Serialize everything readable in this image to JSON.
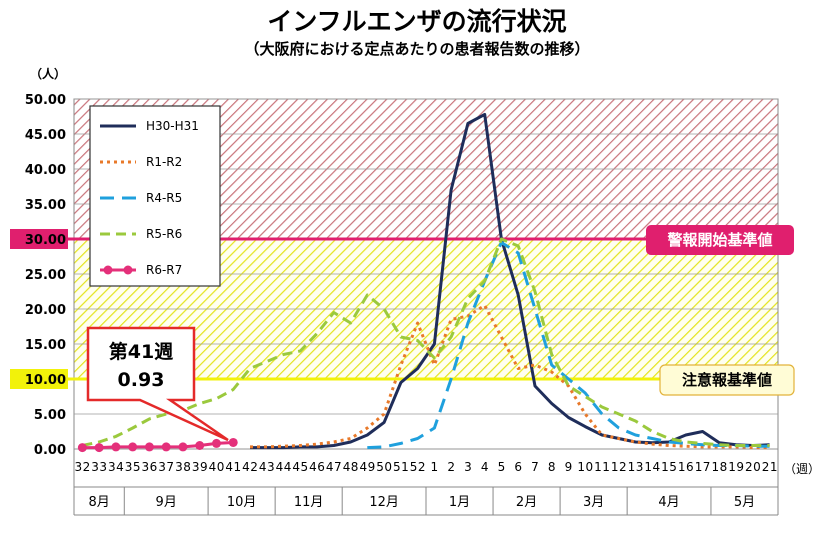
{
  "chart_data": {
    "type": "line",
    "title": "インフルエンザの流行状況",
    "subtitle": "（大阪府における定点あたりの患者報告数の推移）",
    "ylabel_unit": "（人）",
    "xlabel_unit": "（週）",
    "ylim": [
      0,
      50
    ],
    "yticks": [
      "0.00",
      "5.00",
      "10.00",
      "15.00",
      "20.00",
      "25.00",
      "30.00",
      "35.00",
      "40.00",
      "45.00",
      "50.00"
    ],
    "x": [
      "32",
      "33",
      "34",
      "35",
      "36",
      "37",
      "38",
      "39",
      "40",
      "41",
      "42",
      "43",
      "44",
      "45",
      "46",
      "47",
      "48",
      "49",
      "50",
      "51",
      "52",
      "1",
      "2",
      "3",
      "4",
      "5",
      "6",
      "7",
      "8",
      "9",
      "10",
      "11",
      "12",
      "13",
      "14",
      "15",
      "16",
      "17",
      "18",
      "19",
      "20",
      "21"
    ],
    "months": [
      {
        "label": "8月",
        "from": 0,
        "to": 3
      },
      {
        "label": "9月",
        "from": 3,
        "to": 8
      },
      {
        "label": "10月",
        "from": 8,
        "to": 12
      },
      {
        "label": "11月",
        "from": 12,
        "to": 16
      },
      {
        "label": "12月",
        "from": 16,
        "to": 21
      },
      {
        "label": "1月",
        "from": 21,
        "to": 25
      },
      {
        "label": "2月",
        "from": 25,
        "to": 29
      },
      {
        "label": "3月",
        "from": 29,
        "to": 33
      },
      {
        "label": "4月",
        "from": 33,
        "to": 38
      },
      {
        "label": "5月",
        "from": 38,
        "to": 42
      }
    ],
    "series": [
      {
        "name": "H30-H31",
        "color": "#1f2d5a",
        "dash": "",
        "values": [
          null,
          null,
          null,
          null,
          null,
          null,
          null,
          null,
          null,
          null,
          0.2,
          0.2,
          0.2,
          0.3,
          0.3,
          0.5,
          1.0,
          2.0,
          3.8,
          9.5,
          11.5,
          15.0,
          37.0,
          46.5,
          47.8,
          30.0,
          22.0,
          9.0,
          6.5,
          4.5,
          3.2,
          2.0,
          1.5,
          1.0,
          0.9,
          1.0,
          2.0,
          2.5,
          0.9,
          0.6,
          0.5,
          0.6
        ]
      },
      {
        "name": "R1-R2",
        "color": "#e8792a",
        "dash": "3,4",
        "values": [
          null,
          null,
          null,
          null,
          null,
          null,
          null,
          null,
          null,
          null,
          0.3,
          0.3,
          0.4,
          0.5,
          0.7,
          1.0,
          1.5,
          3.0,
          5.0,
          12.0,
          18.0,
          12.0,
          18.5,
          19.0,
          20.5,
          16.0,
          11.5,
          12.0,
          11.0,
          9.0,
          5.0,
          2.0,
          1.5,
          1.0,
          0.7,
          0.5,
          0.4,
          0.3,
          0.3,
          0.3,
          0.2,
          0.2
        ]
      },
      {
        "name": "R4-R5",
        "color": "#1fa0dd",
        "dash": "14,8",
        "values": [
          null,
          null,
          null,
          null,
          null,
          null,
          null,
          null,
          null,
          null,
          null,
          null,
          null,
          null,
          null,
          null,
          null,
          0.2,
          0.3,
          0.8,
          1.5,
          3.0,
          10.0,
          18.0,
          24.0,
          29.5,
          28.0,
          20.0,
          12.0,
          10.0,
          8.0,
          5.0,
          3.0,
          2.0,
          1.5,
          1.0,
          0.8,
          0.6,
          0.5,
          0.5,
          0.4,
          0.4
        ]
      },
      {
        "name": "R5-R6",
        "color": "#9bc93d",
        "dash": "10,6",
        "values": [
          0.5,
          1.0,
          1.8,
          3.0,
          4.3,
          5.0,
          5.5,
          6.5,
          7.2,
          8.5,
          11.5,
          12.5,
          13.5,
          14.0,
          16.5,
          19.5,
          18.0,
          22.0,
          20.0,
          16.0,
          15.5,
          13.0,
          16.0,
          21.5,
          24.0,
          30.0,
          29.0,
          22.5,
          13.5,
          9.0,
          7.5,
          6.0,
          5.0,
          4.0,
          2.5,
          1.5,
          1.0,
          0.8,
          0.6,
          0.5,
          0.5,
          0.5
        ]
      },
      {
        "name": "R6-R7",
        "color": "#e4307a",
        "dash": "",
        "values": [
          0.2,
          0.2,
          0.3,
          0.3,
          0.3,
          0.3,
          0.3,
          0.5,
          0.8,
          0.93,
          null,
          null,
          null,
          null,
          null,
          null,
          null,
          null,
          null,
          null,
          null,
          null,
          null,
          null,
          null,
          null,
          null,
          null,
          null,
          null,
          null,
          null,
          null,
          null,
          null,
          null,
          null,
          null,
          null,
          null,
          null,
          null
        ]
      }
    ],
    "thresholds": [
      {
        "label": "警報開始基準値",
        "value": 30,
        "color": "#e01f6e"
      },
      {
        "label": "注意報基準値",
        "value": 10,
        "color": "#f2f20a"
      }
    ],
    "bands": [
      {
        "from": 30,
        "to": 50,
        "color": "#d99a9e"
      },
      {
        "from": 10,
        "to": 30,
        "color": "#e8e83a"
      }
    ],
    "annotation": {
      "line1": "第41週",
      "line2": "0.93"
    }
  }
}
